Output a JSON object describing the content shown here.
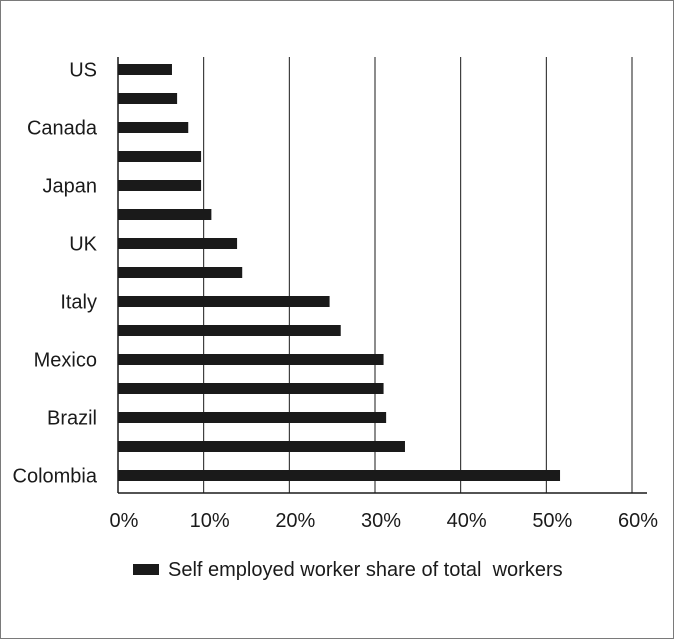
{
  "chart_data": {
    "type": "bar",
    "orientation": "horizontal",
    "title": "",
    "xlabel": "",
    "ylabel": "",
    "categories": [
      "US",
      "",
      "Canada",
      "",
      "Japan",
      "",
      "UK",
      "",
      "Italy",
      "",
      "Mexico",
      "",
      "Brazil",
      "",
      "Colombia"
    ],
    "series": [
      {
        "name": "Self employed worker share of total  workers",
        "values": [
          6.3,
          6.9,
          8.2,
          9.7,
          9.7,
          10.9,
          13.9,
          14.5,
          24.7,
          26.0,
          31.0,
          31.0,
          31.3,
          33.5,
          51.6
        ],
        "color": "#1a1a1a"
      }
    ],
    "xlim": [
      0,
      60
    ],
    "x_ticks": [
      "0%",
      "10%",
      "20%",
      "30%",
      "40%",
      "50%",
      "60%"
    ],
    "grid": "vertical",
    "legend_position": "bottom"
  }
}
